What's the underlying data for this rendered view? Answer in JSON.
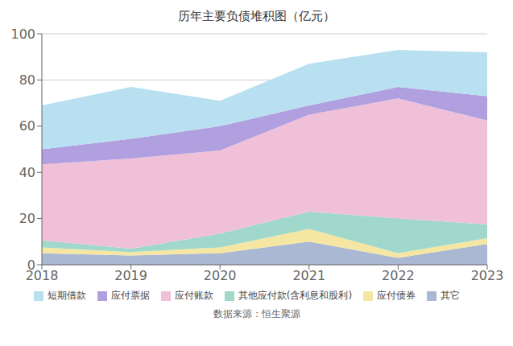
{
  "chart_data": {
    "type": "area",
    "title": "历年主要负债堆积图（亿元）",
    "x": [
      2018,
      2019,
      2020,
      2021,
      2022,
      2023
    ],
    "series": [
      {
        "name": "其它",
        "color": "#aab8d4",
        "values": [
          5.0,
          4.0,
          5.0,
          10.0,
          3.0,
          9.0
        ]
      },
      {
        "name": "应付债券",
        "color": "#f5e6a3",
        "values": [
          2.5,
          1.5,
          2.5,
          5.5,
          2.0,
          2.5
        ]
      },
      {
        "name": "其他应付款(含利息和股利)",
        "color": "#a0d8cc",
        "values": [
          3.0,
          1.5,
          6.0,
          7.5,
          15.0,
          6.0
        ]
      },
      {
        "name": "应付账款",
        "color": "#f0c0d8",
        "values": [
          33.0,
          39.0,
          36.0,
          42.0,
          52.0,
          45.0
        ]
      },
      {
        "name": "应付票据",
        "color": "#b0a0e0",
        "values": [
          6.5,
          8.5,
          10.5,
          4.0,
          5.0,
          10.5
        ]
      },
      {
        "name": "短期借款",
        "color": "#b8e0f0",
        "values": [
          19.0,
          22.5,
          11.0,
          18.0,
          16.0,
          19.0
        ]
      }
    ],
    "xlim": [
      2018,
      2023
    ],
    "xticks": [
      2018,
      2019,
      2020,
      2021,
      2022,
      2023
    ],
    "ylim": [
      0,
      100
    ],
    "yticks": [
      0,
      20,
      40,
      60,
      80,
      100
    ],
    "stacked": true,
    "grid": true,
    "legend": "bottom",
    "annotations": [
      "数据来源：恒生聚源"
    ]
  }
}
